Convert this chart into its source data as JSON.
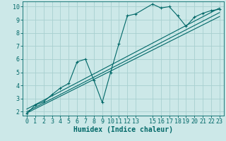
{
  "title": "",
  "xlabel": "Humidex (Indice chaleur)",
  "ylabel": "",
  "bg_color": "#cce8e8",
  "grid_color": "#a8d0d0",
  "line_color": "#006868",
  "xlim": [
    -0.5,
    23.5
  ],
  "ylim": [
    1.7,
    10.4
  ],
  "xtick_vals": [
    0,
    1,
    2,
    3,
    4,
    5,
    6,
    7,
    8,
    9,
    10,
    11,
    12,
    13,
    15,
    16,
    17,
    18,
    19,
    20,
    21,
    22,
    23
  ],
  "ytick_vals": [
    2,
    3,
    4,
    5,
    6,
    7,
    8,
    9,
    10
  ],
  "line_main_x": [
    0,
    1,
    2,
    3,
    4,
    5,
    6,
    7,
    8,
    9,
    10,
    11,
    12,
    13,
    15,
    16,
    17,
    18,
    19,
    20,
    21,
    22,
    23
  ],
  "line_main_y": [
    1.85,
    2.5,
    2.75,
    3.3,
    3.8,
    4.15,
    5.8,
    6.0,
    4.4,
    2.7,
    5.0,
    7.2,
    9.3,
    9.45,
    10.2,
    9.9,
    10.0,
    9.3,
    8.5,
    9.2,
    9.5,
    9.7,
    9.8
  ],
  "line2_x": [
    0,
    23
  ],
  "line2_y": [
    2.2,
    9.9
  ],
  "line3_x": [
    0,
    23
  ],
  "line3_y": [
    2.0,
    9.55
  ],
  "line4_x": [
    0,
    23
  ],
  "line4_y": [
    1.9,
    9.25
  ],
  "fontsize_label": 7,
  "fontsize_tick": 6,
  "linewidth": 0.8,
  "markersize": 3
}
